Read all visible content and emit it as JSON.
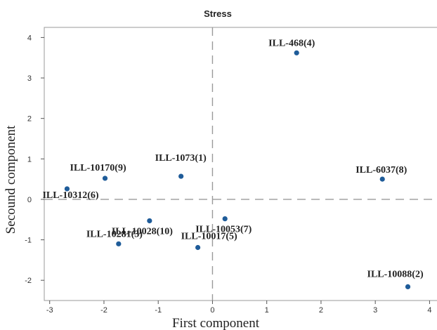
{
  "chart_data": {
    "type": "scatter",
    "title": "Stress",
    "xlabel": "First component",
    "ylabel": "Secound component",
    "xlim": [
      -3.1,
      4.15
    ],
    "ylim": [
      -2.5,
      4.25
    ],
    "xticks": [
      -3,
      -2,
      -1,
      0,
      1,
      2,
      3,
      4
    ],
    "yticks": [
      4,
      3,
      2,
      1,
      0,
      -1,
      -2
    ],
    "xtick_labels": [
      "-3",
      "-2",
      "-1",
      "0",
      "1",
      "2",
      "3",
      "4"
    ],
    "ytick_labels": [
      "4",
      "3",
      "2",
      "1",
      "0",
      "-1",
      "-2"
    ],
    "reference_lines": {
      "x": 0,
      "y": 0,
      "style": "dashed"
    },
    "grid": false,
    "point_color": "#1f5c99",
    "points": [
      {
        "label": "ILL-468(4)",
        "x": 1.55,
        "y": 3.62
      },
      {
        "label": "ILL-6037(8)",
        "x": 3.13,
        "y": 0.5
      },
      {
        "label": "ILL-1073(1)",
        "x": -0.58,
        "y": 0.57
      },
      {
        "label": "ILL-10170(9)",
        "x": -1.98,
        "y": 0.52
      },
      {
        "label": "ILL-10312(6)",
        "x": -2.68,
        "y": 0.26
      },
      {
        "label": "ILL-10028(10)",
        "x": -1.16,
        "y": -0.53
      },
      {
        "label": "ILL-10053(7)",
        "x": 0.23,
        "y": -0.48
      },
      {
        "label": "ILL-10281(3)",
        "x": -1.73,
        "y": -1.1
      },
      {
        "label": "ILL-10017(5)",
        "x": -0.27,
        "y": -1.19
      },
      {
        "label": "ILL-10088(2)",
        "x": 3.6,
        "y": -2.16
      }
    ]
  }
}
